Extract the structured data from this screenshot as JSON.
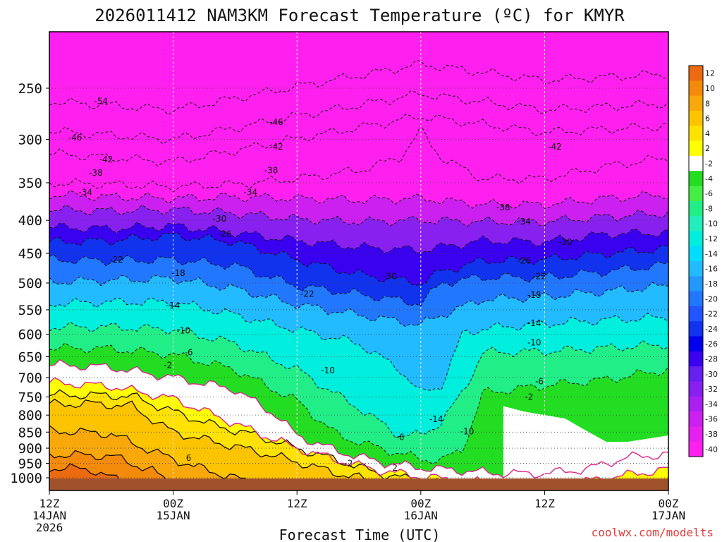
{
  "chart_data": {
    "type": "heatmap",
    "title": "2026011412 NAM3KM Forecast Temperature (ºC) for KMYR",
    "xlabel": "Forecast Time (UTC)",
    "credit": "coolwx.com/modelts",
    "y_axis": {
      "scale": "log-pressure",
      "direction": "inverted",
      "range": [
        1025,
        200
      ],
      "ticks": [
        250,
        300,
        350,
        400,
        450,
        500,
        550,
        600,
        650,
        700,
        750,
        800,
        850,
        900,
        950,
        1000
      ]
    },
    "x_axis": {
      "range_hours": [
        0,
        60
      ],
      "ticks": [
        {
          "hour": 0,
          "lines": [
            "12Z",
            "14JAN",
            "2026"
          ]
        },
        {
          "hour": 12,
          "lines": [
            "00Z",
            "15JAN"
          ]
        },
        {
          "hour": 24,
          "lines": [
            "12Z"
          ]
        },
        {
          "hour": 36,
          "lines": [
            "00Z",
            "16JAN"
          ]
        },
        {
          "hour": 48,
          "lines": [
            "12Z"
          ]
        },
        {
          "hour": 60,
          "lines": [
            "00Z",
            "17JAN"
          ]
        }
      ]
    },
    "grid": true,
    "colorbar": {
      "placement": "right",
      "levels": [
        12,
        10,
        8,
        6,
        4,
        2,
        -2,
        -4,
        -6,
        -8,
        -10,
        -12,
        -14,
        -16,
        -18,
        -20,
        -22,
        -24,
        -26,
        -28,
        -30,
        -32,
        -34,
        -36,
        -38,
        -40
      ],
      "colors": [
        "#ec6a10",
        "#f48a0a",
        "#f8a80a",
        "#fcc400",
        "#ffe200",
        "#ffff00",
        "#ffffff",
        "#22dd22",
        "#44ee44",
        "#22ee88",
        "#22eebb",
        "#00eedd",
        "#00ddff",
        "#22bbff",
        "#2299ff",
        "#2277ff",
        "#2255ff",
        "#1133ee",
        "#0000ee",
        "#3a00f0",
        "#6620f0",
        "#8820f0",
        "#aa20f0",
        "#cc20f0",
        "#e620f0",
        "#ff20f0"
      ]
    },
    "bands": [
      {
        "value": -42,
        "profile": [
          [
            0,
            350
          ],
          [
            6,
            352
          ],
          [
            12,
            355
          ],
          [
            18,
            352
          ],
          [
            24,
            345
          ],
          [
            30,
            335
          ],
          [
            34,
            320
          ],
          [
            36,
            290
          ],
          [
            38,
            320
          ],
          [
            42,
            345
          ],
          [
            48,
            345
          ],
          [
            54,
            330
          ],
          [
            60,
            320
          ]
        ]
      },
      {
        "value": -38,
        "profile": [
          [
            0,
            365
          ],
          [
            6,
            368
          ],
          [
            12,
            370
          ],
          [
            18,
            368
          ],
          [
            24,
            370
          ],
          [
            30,
            372
          ],
          [
            36,
            370
          ],
          [
            42,
            378
          ],
          [
            48,
            378
          ],
          [
            54,
            370
          ],
          [
            60,
            365
          ]
        ]
      },
      {
        "value": -34,
        "profile": [
          [
            0,
            385
          ],
          [
            6,
            387
          ],
          [
            12,
            385
          ],
          [
            18,
            390
          ],
          [
            24,
            398
          ],
          [
            30,
            402
          ],
          [
            36,
            400
          ],
          [
            42,
            402
          ],
          [
            48,
            402
          ],
          [
            54,
            395
          ],
          [
            60,
            390
          ]
        ]
      },
      {
        "value": -30,
        "profile": [
          [
            0,
            410
          ],
          [
            6,
            412
          ],
          [
            12,
            408
          ],
          [
            18,
            418
          ],
          [
            24,
            430
          ],
          [
            30,
            440
          ],
          [
            36,
            445
          ],
          [
            42,
            430
          ],
          [
            48,
            432
          ],
          [
            54,
            420
          ],
          [
            60,
            418
          ]
        ]
      },
      {
        "value": -26,
        "profile": [
          [
            0,
            432
          ],
          [
            6,
            430
          ],
          [
            12,
            422
          ],
          [
            18,
            432
          ],
          [
            24,
            460
          ],
          [
            30,
            485
          ],
          [
            36,
            500
          ],
          [
            38,
            480
          ],
          [
            42,
            462
          ],
          [
            48,
            460
          ],
          [
            54,
            450
          ],
          [
            60,
            442
          ]
        ]
      },
      {
        "value": -22,
        "profile": [
          [
            0,
            460
          ],
          [
            6,
            462
          ],
          [
            12,
            460
          ],
          [
            18,
            470
          ],
          [
            24,
            505
          ],
          [
            30,
            520
          ],
          [
            36,
            538
          ],
          [
            38,
            500
          ],
          [
            42,
            490
          ],
          [
            48,
            490
          ],
          [
            54,
            480
          ],
          [
            60,
            468
          ]
        ]
      },
      {
        "value": -18,
        "profile": [
          [
            0,
            498
          ],
          [
            6,
            495
          ],
          [
            12,
            492
          ],
          [
            18,
            510
          ],
          [
            24,
            540
          ],
          [
            30,
            560
          ],
          [
            36,
            580
          ],
          [
            38,
            560
          ],
          [
            42,
            530
          ],
          [
            48,
            525
          ],
          [
            54,
            515
          ],
          [
            60,
            505
          ]
        ]
      },
      {
        "value": -14,
        "profile": [
          [
            0,
            538
          ],
          [
            6,
            535
          ],
          [
            12,
            535
          ],
          [
            18,
            560
          ],
          [
            24,
            590
          ],
          [
            30,
            620
          ],
          [
            34,
            680
          ],
          [
            36,
            740
          ],
          [
            38,
            720
          ],
          [
            40,
            600
          ],
          [
            42,
            588
          ],
          [
            48,
            578
          ],
          [
            54,
            570
          ],
          [
            60,
            565
          ]
        ]
      },
      {
        "value": -10,
        "profile": [
          [
            0,
            585
          ],
          [
            6,
            585
          ],
          [
            12,
            590
          ],
          [
            18,
            620
          ],
          [
            24,
            680
          ],
          [
            30,
            780
          ],
          [
            34,
            860
          ],
          [
            36,
            860
          ],
          [
            38,
            820
          ],
          [
            40,
            740
          ],
          [
            42,
            640
          ],
          [
            48,
            638
          ],
          [
            54,
            630
          ],
          [
            60,
            622
          ]
        ]
      },
      {
        "value": -6,
        "profile": [
          [
            0,
            630
          ],
          [
            6,
            632
          ],
          [
            12,
            645
          ],
          [
            18,
            680
          ],
          [
            24,
            760
          ],
          [
            28,
            860
          ],
          [
            32,
            900
          ],
          [
            36,
            935
          ],
          [
            38,
            940
          ],
          [
            40,
            905
          ],
          [
            42,
            740
          ],
          [
            48,
            720
          ],
          [
            54,
            705
          ],
          [
            60,
            680
          ]
        ]
      },
      {
        "value": -2,
        "profile": [
          [
            0,
            668
          ],
          [
            6,
            675
          ],
          [
            12,
            700
          ],
          [
            18,
            730
          ],
          [
            22,
            800
          ],
          [
            24,
            860
          ],
          [
            28,
            910
          ],
          [
            32,
            945
          ],
          [
            36,
            965
          ],
          [
            40,
            975
          ],
          [
            44,
            985
          ],
          [
            48,
            985
          ],
          [
            52,
            970
          ],
          [
            56,
            930
          ],
          [
            60,
            920
          ]
        ]
      },
      {
        "value": 2,
        "profile": [
          [
            0,
            712
          ],
          [
            6,
            722
          ],
          [
            12,
            755
          ],
          [
            16,
            800
          ],
          [
            20,
            850
          ],
          [
            24,
            900
          ],
          [
            28,
            940
          ],
          [
            32,
            975
          ],
          [
            36,
            995
          ],
          [
            40,
            1012
          ],
          [
            46,
            1025
          ],
          [
            50,
            1025
          ],
          [
            54,
            1000
          ],
          [
            58,
            980
          ],
          [
            60,
            970
          ]
        ]
      }
    ],
    "warm_pocket_profile": [
      [
        44,
        775
      ],
      [
        46,
        790
      ],
      [
        48,
        800
      ],
      [
        50,
        810
      ],
      [
        52,
        845
      ],
      [
        54,
        880
      ],
      [
        56,
        880
      ],
      [
        58,
        870
      ],
      [
        60,
        860
      ]
    ],
    "warm_pockets": [
      {
        "value": 4,
        "base": [
          [
            0,
            745
          ],
          [
            4,
            745
          ],
          [
            8,
            748
          ],
          [
            12,
            790
          ],
          [
            16,
            830
          ],
          [
            20,
            860
          ],
          [
            24,
            900
          ],
          [
            28,
            940
          ],
          [
            32,
            985
          ],
          [
            36,
            1012
          ],
          [
            40,
            1025
          ]
        ]
      },
      {
        "value": 6,
        "base": [
          [
            0,
            770
          ],
          [
            4,
            768
          ],
          [
            8,
            775
          ],
          [
            12,
            850
          ],
          [
            16,
            880
          ],
          [
            20,
            910
          ],
          [
            24,
            945
          ],
          [
            28,
            985
          ],
          [
            32,
            1015
          ],
          [
            34,
            1025
          ]
        ]
      },
      {
        "value": 8,
        "base": [
          [
            0,
            845
          ],
          [
            6,
            855
          ],
          [
            10,
            910
          ],
          [
            14,
            960
          ],
          [
            18,
            1000
          ],
          [
            20,
            1025
          ]
        ]
      },
      {
        "value": 10,
        "base": [
          [
            0,
            920
          ],
          [
            6,
            925
          ],
          [
            10,
            975
          ],
          [
            12,
            1025
          ]
        ]
      },
      {
        "value": 12,
        "base": [
          [
            0,
            965
          ],
          [
            4,
            970
          ],
          [
            6,
            1000
          ],
          [
            8,
            1025
          ]
        ]
      }
    ],
    "contour_labels": [
      {
        "text": "-54",
        "hour": 5,
        "p": 262
      },
      {
        "text": "-46",
        "hour": 2.5,
        "p": 298
      },
      {
        "text": "-42",
        "hour": 5.5,
        "p": 322
      },
      {
        "text": "-38",
        "hour": 4.5,
        "p": 338
      },
      {
        "text": "-34",
        "hour": 3.5,
        "p": 362
      },
      {
        "text": "-22",
        "hour": 6.5,
        "p": 460
      },
      {
        "text": "-18",
        "hour": 12.5,
        "p": 483
      },
      {
        "text": "-14",
        "hour": 12,
        "p": 542
      },
      {
        "text": "-10",
        "hour": 13,
        "p": 592
      },
      {
        "text": "-6",
        "hour": 13.5,
        "p": 640
      },
      {
        "text": "-2",
        "hour": 11.5,
        "p": 670
      },
      {
        "text": "6",
        "hour": 13.5,
        "p": 932
      },
      {
        "text": "-46",
        "hour": 22,
        "p": 282
      },
      {
        "text": "-42",
        "hour": 22,
        "p": 308
      },
      {
        "text": "-38",
        "hour": 21.5,
        "p": 335
      },
      {
        "text": "-34",
        "hour": 19.5,
        "p": 362
      },
      {
        "text": "-30",
        "hour": 16.5,
        "p": 398
      },
      {
        "text": "-26",
        "hour": 17,
        "p": 420
      },
      {
        "text": "-22",
        "hour": 25,
        "p": 520
      },
      {
        "text": "-10",
        "hour": 27,
        "p": 683
      },
      {
        "text": "-30",
        "hour": 33,
        "p": 488
      },
      {
        "text": "-2",
        "hour": 29,
        "p": 950
      },
      {
        "text": "2",
        "hour": 33.5,
        "p": 965
      },
      {
        "text": "-6",
        "hour": 34,
        "p": 865
      },
      {
        "text": "-14",
        "hour": 37.5,
        "p": 812
      },
      {
        "text": "-10",
        "hour": 40.5,
        "p": 848
      },
      {
        "text": "-38",
        "hour": 44,
        "p": 382
      },
      {
        "text": "-34",
        "hour": 46,
        "p": 402
      },
      {
        "text": "-30",
        "hour": 50,
        "p": 432
      },
      {
        "text": "-26",
        "hour": 46,
        "p": 462
      },
      {
        "text": "-22",
        "hour": 47.5,
        "p": 488
      },
      {
        "text": "-18",
        "hour": 47,
        "p": 522
      },
      {
        "text": "-14",
        "hour": 47,
        "p": 577
      },
      {
        "text": "-10",
        "hour": 47,
        "p": 618
      },
      {
        "text": "-6",
        "hour": 47.5,
        "p": 710
      },
      {
        "text": "-2",
        "hour": 46.5,
        "p": 750
      },
      {
        "text": "-42",
        "hour": 49,
        "p": 308
      }
    ]
  }
}
